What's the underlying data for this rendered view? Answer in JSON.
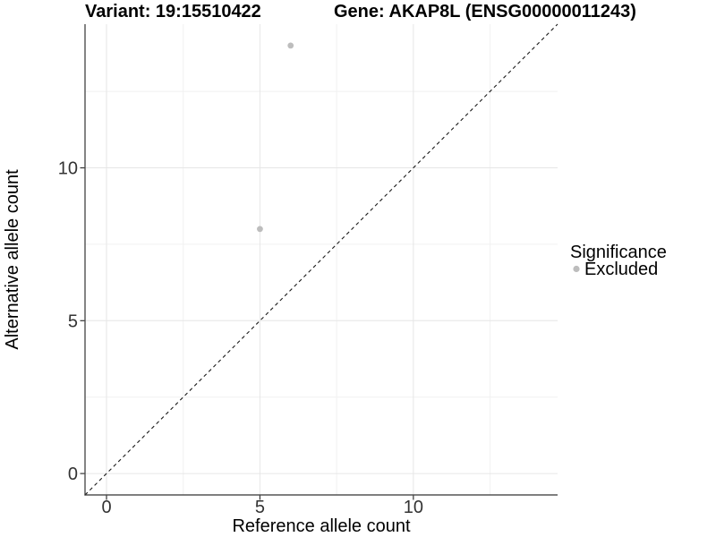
{
  "header": {
    "variant_label": "Variant: 19:15510422",
    "gene_label": "Gene: AKAP8L (ENSG00000011243)"
  },
  "legend": {
    "title": "Significance",
    "items": [
      {
        "label": "Excluded",
        "color": "#bdbdbd"
      }
    ]
  },
  "chart_data": {
    "type": "scatter",
    "title": "Variant: 19:15510422 / Gene: AKAP8L (ENSG00000011243)",
    "xlabel": "Reference allele count",
    "ylabel": "Alternative allele count",
    "xlim": [
      -0.7,
      14.7
    ],
    "ylim": [
      -0.7,
      14.7
    ],
    "x_ticks": [
      0,
      5,
      10
    ],
    "y_ticks": [
      0,
      5,
      10
    ],
    "x_minor_ticks": [
      2.5,
      7.5,
      12.5
    ],
    "y_minor_ticks": [
      2.5,
      7.5,
      12.5
    ],
    "grid": true,
    "legend_position": "right",
    "series": [
      {
        "name": "Excluded",
        "color": "#bdbdbd",
        "points": [
          {
            "x": 5,
            "y": 8
          },
          {
            "x": 6,
            "y": 14
          }
        ]
      }
    ],
    "reference_line": {
      "type": "identity",
      "slope": 1,
      "intercept": 0,
      "style": "dashed",
      "color": "#1a1a1a"
    }
  }
}
